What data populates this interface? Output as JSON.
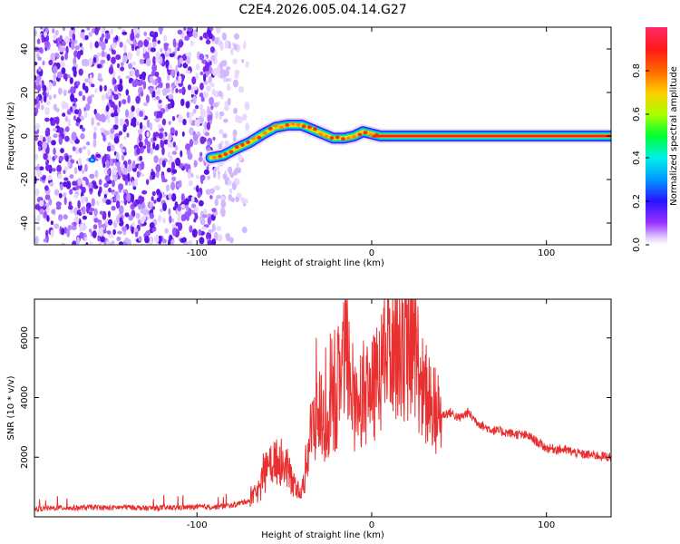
{
  "page_title": "C2E4.2026.005.04.14.G27",
  "chart_data": [
    {
      "type": "heatmap",
      "title": "C2E4.2026.005.04.14.G27",
      "xlabel": "Height of straight line (km)",
      "ylabel": "Frequency (Hz)",
      "xlim": [
        -193,
        137
      ],
      "ylim": [
        -50,
        50
      ],
      "x_ticks": [
        -100,
        0,
        100
      ],
      "x_tick_labels": [
        "-100",
        "0",
        "100"
      ],
      "y_ticks": [
        -40,
        -20,
        0,
        20,
        40
      ],
      "y_tick_labels": [
        "-40",
        "-20",
        "0",
        "20",
        "40"
      ],
      "colorbar": {
        "label": "Normalized spectral amplitude",
        "range": [
          0,
          1
        ],
        "ticks": [
          0.0,
          0.2,
          0.4,
          0.6,
          0.8
        ],
        "tick_labels": [
          "0.0",
          "0.2",
          "0.4",
          "0.6",
          "0.8"
        ]
      },
      "noise_region_x": [
        -193,
        -70
      ],
      "signal_ridge": {
        "x": [
          -92,
          -85,
          -78,
          -70,
          -62,
          -55,
          -48,
          -40,
          -34,
          -28,
          -22,
          -16,
          -10,
          -5,
          0,
          5,
          10,
          20,
          40,
          60,
          80,
          100,
          120,
          137
        ],
        "frequency": [
          -10,
          -9,
          -6,
          -3,
          1,
          4,
          5,
          5,
          3,
          1,
          -1,
          -1,
          0,
          2,
          1,
          0,
          0,
          0,
          0,
          0,
          0,
          0,
          0,
          0
        ]
      }
    },
    {
      "type": "line",
      "xlabel": "Height of straight line (km)",
      "ylabel": "SNR (10 * v/v)",
      "xlim": [
        -193,
        137
      ],
      "ylim": [
        0,
        7300
      ],
      "x_ticks": [
        -100,
        0,
        100
      ],
      "x_tick_labels": [
        "-100",
        "0",
        "100"
      ],
      "y_ticks": [
        2000,
        4000,
        6000
      ],
      "y_tick_labels": [
        "2000",
        "4000",
        "6000"
      ],
      "series": [
        {
          "name": "SNR",
          "color": "#e83030",
          "x": [
            -193,
            -180,
            -170,
            -160,
            -150,
            -140,
            -130,
            -120,
            -110,
            -100,
            -90,
            -80,
            -70,
            -65,
            -60,
            -55,
            -50,
            -45,
            -40,
            -35,
            -30,
            -25,
            -20,
            -15,
            -10,
            -5,
            0,
            5,
            10,
            15,
            20,
            25,
            30,
            35,
            40,
            45,
            50,
            55,
            60,
            65,
            70,
            80,
            90,
            100,
            110,
            120,
            130,
            137
          ],
          "y": [
            250,
            300,
            300,
            320,
            300,
            330,
            290,
            300,
            310,
            330,
            330,
            380,
            550,
            850,
            1600,
            1900,
            1800,
            1200,
            700,
            2800,
            3600,
            2900,
            4200,
            5600,
            3800,
            4300,
            4100,
            4800,
            6000,
            5900,
            5600,
            5700,
            3900,
            3600,
            3400,
            3500,
            3300,
            3500,
            3200,
            3000,
            2900,
            2800,
            2700,
            2300,
            2250,
            2100,
            2050,
            2000
          ]
        }
      ]
    }
  ]
}
